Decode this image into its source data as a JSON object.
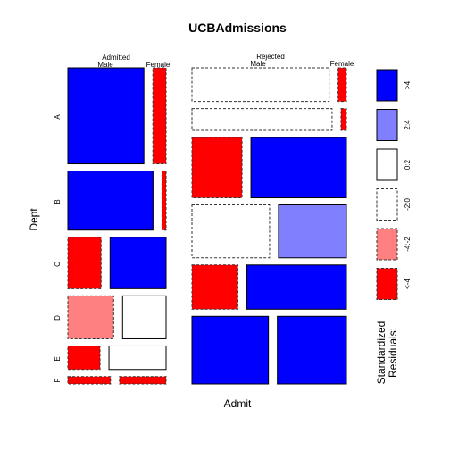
{
  "chart_data": {
    "type": "mosaic",
    "title": "UCBAdmissions",
    "xlabel": "Admit",
    "ylabel": "Dept",
    "admit_levels": [
      "Admitted",
      "Rejected"
    ],
    "gender_levels": [
      "Male",
      "Female"
    ],
    "departments": [
      "A",
      "B",
      "C",
      "D",
      "E",
      "F"
    ],
    "cells": [
      {
        "admit": "Admitted",
        "dept": "A",
        "gender": "Male",
        "count": 512,
        "residual_class": ">4"
      },
      {
        "admit": "Admitted",
        "dept": "A",
        "gender": "Female",
        "count": 89,
        "residual_class": "<-4"
      },
      {
        "admit": "Admitted",
        "dept": "B",
        "gender": "Male",
        "count": 353,
        "residual_class": ">4"
      },
      {
        "admit": "Admitted",
        "dept": "B",
        "gender": "Female",
        "count": 17,
        "residual_class": "<-4"
      },
      {
        "admit": "Admitted",
        "dept": "C",
        "gender": "Male",
        "count": 120,
        "residual_class": "<-4"
      },
      {
        "admit": "Admitted",
        "dept": "C",
        "gender": "Female",
        "count": 202,
        "residual_class": ">4"
      },
      {
        "admit": "Admitted",
        "dept": "D",
        "gender": "Male",
        "count": 138,
        "residual_class": "-4:-2"
      },
      {
        "admit": "Admitted",
        "dept": "D",
        "gender": "Female",
        "count": 131,
        "residual_class": "0:2"
      },
      {
        "admit": "Admitted",
        "dept": "E",
        "gender": "Male",
        "count": 53,
        "residual_class": "<-4"
      },
      {
        "admit": "Admitted",
        "dept": "E",
        "gender": "Female",
        "count": 94,
        "residual_class": "0:2"
      },
      {
        "admit": "Admitted",
        "dept": "F",
        "gender": "Male",
        "count": 22,
        "residual_class": "<-4"
      },
      {
        "admit": "Admitted",
        "dept": "F",
        "gender": "Female",
        "count": 24,
        "residual_class": "<-4"
      },
      {
        "admit": "Rejected",
        "dept": "A",
        "gender": "Male",
        "count": 313,
        "residual_class": "-2:0"
      },
      {
        "admit": "Rejected",
        "dept": "A",
        "gender": "Female",
        "count": 19,
        "residual_class": "<-4"
      },
      {
        "admit": "Rejected",
        "dept": "B",
        "gender": "Male",
        "count": 207,
        "residual_class": "-2:0"
      },
      {
        "admit": "Rejected",
        "dept": "B",
        "gender": "Female",
        "count": 8,
        "residual_class": "<-4"
      },
      {
        "admit": "Rejected",
        "dept": "C",
        "gender": "Male",
        "count": 205,
        "residual_class": "<-4"
      },
      {
        "admit": "Rejected",
        "dept": "C",
        "gender": "Female",
        "count": 391,
        "residual_class": ">4"
      },
      {
        "admit": "Rejected",
        "dept": "D",
        "gender": "Male",
        "count": 279,
        "residual_class": "-2:0"
      },
      {
        "admit": "Rejected",
        "dept": "D",
        "gender": "Female",
        "count": 244,
        "residual_class": "2:4"
      },
      {
        "admit": "Rejected",
        "dept": "E",
        "gender": "Male",
        "count": 138,
        "residual_class": "<-4"
      },
      {
        "admit": "Rejected",
        "dept": "E",
        "gender": "Female",
        "count": 299,
        "residual_class": ">4"
      },
      {
        "admit": "Rejected",
        "dept": "F",
        "gender": "Male",
        "count": 351,
        "residual_class": ">4"
      },
      {
        "admit": "Rejected",
        "dept": "F",
        "gender": "Female",
        "count": 317,
        "residual_class": ">4"
      }
    ],
    "legend": {
      "title_lines": [
        "Standardized",
        "Residuals:"
      ],
      "placement": "right",
      "entries": [
        {
          "label": ">4",
          "color": "#0000ff",
          "dashed": false
        },
        {
          "label": "2:4",
          "color": "#8080ff",
          "dashed": false
        },
        {
          "label": "0:2",
          "color": "#ffffff",
          "dashed": false
        },
        {
          "label": "-2:0",
          "color": "#ffffff",
          "dashed": true
        },
        {
          "label": "-4:-2",
          "color": "#ff8080",
          "dashed": true
        },
        {
          "label": "<-4",
          "color": "#ff0000",
          "dashed": true
        }
      ]
    }
  }
}
